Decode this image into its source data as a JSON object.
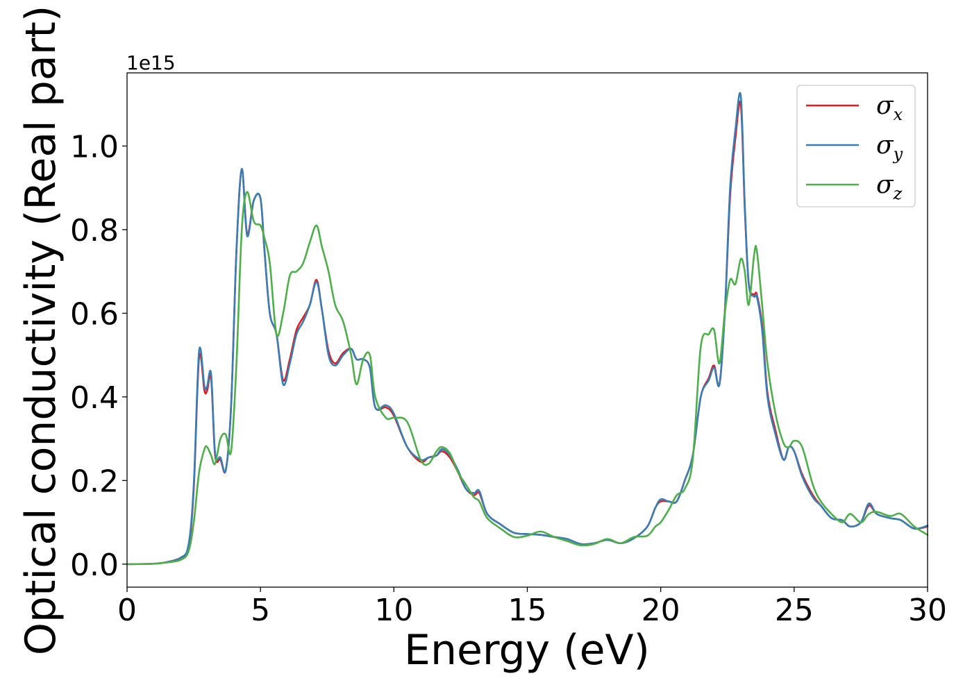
{
  "chart_data": {
    "type": "line",
    "title": "",
    "xlabel": "Energy (eV)",
    "ylabel": "Optical conductivity (Real part)",
    "y_offset_label": "1e15",
    "xlim": [
      0,
      30
    ],
    "ylim": [
      -0.055,
      1.175
    ],
    "xticks": [
      0,
      5,
      10,
      15,
      20,
      25,
      30
    ],
    "xtick_labels": [
      "0",
      "5",
      "10",
      "15",
      "20",
      "25",
      "30"
    ],
    "yticks": [
      0.0,
      0.2,
      0.4,
      0.6,
      0.8,
      1.0
    ],
    "ytick_labels": [
      "0.0",
      "0.2",
      "0.4",
      "0.6",
      "0.8",
      "1.0"
    ],
    "grid": false,
    "legend_position": "top-right",
    "series": [
      {
        "name": "σx",
        "legend_base": "σ",
        "legend_sub": "x",
        "color": "#e41a1c",
        "x": [
          0,
          1,
          1.5,
          2,
          2.3,
          2.5,
          2.7,
          2.9,
          3.0,
          3.15,
          3.3,
          3.5,
          3.7,
          3.9,
          4.1,
          4.3,
          4.5,
          4.75,
          5.0,
          5.15,
          5.35,
          5.6,
          5.85,
          6.1,
          6.35,
          6.6,
          6.85,
          7.1,
          7.3,
          7.55,
          7.8,
          8.1,
          8.4,
          8.6,
          8.85,
          9.1,
          9.3,
          9.7,
          10.0,
          10.5,
          11.0,
          11.3,
          11.6,
          11.8,
          12.1,
          12.4,
          12.7,
          13.0,
          13.2,
          13.5,
          14.0,
          14.5,
          15.0,
          15.5,
          16.0,
          16.5,
          17.0,
          17.5,
          18.0,
          18.5,
          19.0,
          19.5,
          19.8,
          20.0,
          20.3,
          20.6,
          20.9,
          21.2,
          21.5,
          21.8,
          22.0,
          22.2,
          22.4,
          22.6,
          22.8,
          23.0,
          23.15,
          23.3,
          23.5,
          23.6,
          23.8,
          24.0,
          24.3,
          24.6,
          24.8,
          25.0,
          25.3,
          25.7,
          26.0,
          26.4,
          26.8,
          27.1,
          27.5,
          27.8,
          28.1,
          28.6,
          29.0,
          29.5,
          30.0
        ],
        "values": [
          0.0,
          0.001,
          0.005,
          0.015,
          0.04,
          0.18,
          0.495,
          0.415,
          0.415,
          0.445,
          0.26,
          0.25,
          0.225,
          0.38,
          0.75,
          0.945,
          0.79,
          0.87,
          0.875,
          0.75,
          0.6,
          0.55,
          0.44,
          0.49,
          0.56,
          0.59,
          0.62,
          0.68,
          0.61,
          0.51,
          0.48,
          0.505,
          0.515,
          0.49,
          0.49,
          0.47,
          0.375,
          0.375,
          0.355,
          0.28,
          0.245,
          0.255,
          0.26,
          0.27,
          0.255,
          0.22,
          0.18,
          0.165,
          0.17,
          0.12,
          0.095,
          0.075,
          0.072,
          0.07,
          0.065,
          0.06,
          0.048,
          0.05,
          0.058,
          0.05,
          0.062,
          0.09,
          0.135,
          0.15,
          0.15,
          0.15,
          0.2,
          0.26,
          0.4,
          0.445,
          0.475,
          0.43,
          0.6,
          0.88,
          1.02,
          1.1,
          0.85,
          0.67,
          0.645,
          0.645,
          0.57,
          0.41,
          0.32,
          0.25,
          0.28,
          0.27,
          0.215,
          0.165,
          0.14,
          0.11,
          0.105,
          0.09,
          0.1,
          0.14,
          0.12,
          0.11,
          0.105,
          0.085,
          0.09
        ]
      },
      {
        "name": "σy",
        "legend_base": "σ",
        "legend_sub": "y",
        "color": "#377eb8",
        "x": [
          0,
          1,
          1.5,
          2,
          2.3,
          2.5,
          2.7,
          2.9,
          3.0,
          3.15,
          3.3,
          3.5,
          3.7,
          3.9,
          4.1,
          4.3,
          4.5,
          4.75,
          5.0,
          5.15,
          5.35,
          5.6,
          5.85,
          6.1,
          6.35,
          6.6,
          6.85,
          7.1,
          7.3,
          7.55,
          7.8,
          8.1,
          8.4,
          8.6,
          8.85,
          9.1,
          9.3,
          9.7,
          10.0,
          10.5,
          11.0,
          11.3,
          11.6,
          11.8,
          12.1,
          12.4,
          12.7,
          13.0,
          13.2,
          13.5,
          14.0,
          14.5,
          15.0,
          15.5,
          16.0,
          16.5,
          17.0,
          17.5,
          18.0,
          18.5,
          19.0,
          19.5,
          19.8,
          20.0,
          20.3,
          20.6,
          20.9,
          21.2,
          21.5,
          21.8,
          22.0,
          22.2,
          22.4,
          22.6,
          22.8,
          23.0,
          23.15,
          23.3,
          23.5,
          23.6,
          23.8,
          24.0,
          24.3,
          24.6,
          24.8,
          25.0,
          25.3,
          25.7,
          26.0,
          26.4,
          26.8,
          27.1,
          27.5,
          27.8,
          28.1,
          28.6,
          29.0,
          29.5,
          30.0
        ],
        "values": [
          0.0,
          0.001,
          0.005,
          0.015,
          0.045,
          0.19,
          0.51,
          0.425,
          0.425,
          0.455,
          0.265,
          0.255,
          0.225,
          0.38,
          0.75,
          0.945,
          0.785,
          0.87,
          0.875,
          0.75,
          0.6,
          0.55,
          0.43,
          0.48,
          0.55,
          0.58,
          0.62,
          0.675,
          0.61,
          0.5,
          0.475,
          0.5,
          0.515,
          0.49,
          0.49,
          0.47,
          0.375,
          0.38,
          0.36,
          0.28,
          0.25,
          0.255,
          0.26,
          0.275,
          0.26,
          0.225,
          0.18,
          0.17,
          0.175,
          0.12,
          0.095,
          0.075,
          0.072,
          0.07,
          0.065,
          0.06,
          0.048,
          0.05,
          0.058,
          0.05,
          0.062,
          0.09,
          0.135,
          0.155,
          0.15,
          0.15,
          0.2,
          0.26,
          0.4,
          0.44,
          0.47,
          0.43,
          0.6,
          0.9,
          1.04,
          1.12,
          0.86,
          0.67,
          0.64,
          0.64,
          0.56,
          0.4,
          0.31,
          0.25,
          0.28,
          0.27,
          0.21,
          0.16,
          0.14,
          0.11,
          0.105,
          0.09,
          0.1,
          0.145,
          0.12,
          0.11,
          0.105,
          0.085,
          0.092
        ]
      },
      {
        "name": "σz",
        "legend_base": "σ",
        "legend_sub": "z",
        "color": "#4daf4a",
        "x": [
          0,
          1,
          1.5,
          2,
          2.3,
          2.5,
          2.7,
          2.9,
          3.0,
          3.15,
          3.3,
          3.5,
          3.7,
          3.9,
          4.1,
          4.3,
          4.5,
          4.75,
          5.0,
          5.15,
          5.35,
          5.6,
          5.85,
          6.1,
          6.35,
          6.6,
          6.85,
          7.1,
          7.3,
          7.55,
          7.8,
          8.1,
          8.4,
          8.6,
          8.85,
          9.1,
          9.3,
          9.7,
          10.0,
          10.5,
          11.0,
          11.3,
          11.6,
          11.8,
          12.1,
          12.4,
          12.7,
          13.0,
          13.2,
          13.5,
          14.0,
          14.5,
          15.0,
          15.5,
          16.0,
          16.5,
          17.0,
          17.5,
          18.0,
          18.5,
          19.0,
          19.5,
          19.8,
          20.0,
          20.3,
          20.6,
          20.9,
          21.2,
          21.5,
          21.8,
          22.0,
          22.2,
          22.4,
          22.6,
          22.8,
          23.0,
          23.15,
          23.3,
          23.5,
          23.6,
          23.8,
          24.0,
          24.3,
          24.6,
          24.8,
          25.0,
          25.3,
          25.7,
          26.0,
          26.4,
          26.8,
          27.1,
          27.5,
          27.8,
          28.1,
          28.6,
          29.0,
          29.5,
          30.0
        ],
        "values": [
          0.0,
          0.001,
          0.004,
          0.01,
          0.03,
          0.1,
          0.22,
          0.275,
          0.28,
          0.26,
          0.24,
          0.3,
          0.31,
          0.27,
          0.48,
          0.8,
          0.89,
          0.82,
          0.81,
          0.78,
          0.72,
          0.55,
          0.6,
          0.69,
          0.7,
          0.72,
          0.77,
          0.81,
          0.76,
          0.7,
          0.62,
          0.58,
          0.5,
          0.43,
          0.49,
          0.5,
          0.4,
          0.35,
          0.35,
          0.34,
          0.25,
          0.24,
          0.27,
          0.28,
          0.265,
          0.22,
          0.19,
          0.16,
          0.15,
          0.11,
          0.085,
          0.065,
          0.068,
          0.078,
          0.065,
          0.055,
          0.045,
          0.048,
          0.06,
          0.05,
          0.065,
          0.068,
          0.09,
          0.1,
          0.13,
          0.165,
          0.18,
          0.25,
          0.52,
          0.55,
          0.56,
          0.48,
          0.6,
          0.68,
          0.67,
          0.73,
          0.7,
          0.62,
          0.74,
          0.75,
          0.62,
          0.48,
          0.36,
          0.29,
          0.28,
          0.295,
          0.28,
          0.19,
          0.15,
          0.12,
          0.1,
          0.12,
          0.1,
          0.12,
          0.125,
          0.115,
          0.12,
          0.09,
          0.07
        ]
      }
    ]
  }
}
